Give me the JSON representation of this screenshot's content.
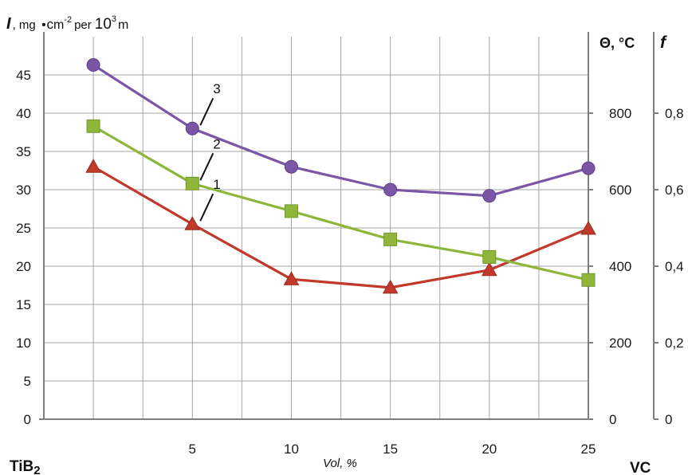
{
  "chart_data": {
    "type": "line",
    "x_axis": {
      "label": "Vol, %",
      "ticks": [
        "5",
        "10",
        "15",
        "20",
        "25"
      ],
      "left_end_label": "TiB",
      "left_end_sub": "2",
      "right_end_label": "VC",
      "range": [
        -2.5,
        25
      ]
    },
    "y_axes": {
      "left": {
        "title_italic": "I",
        "title_rest": ", mg",
        "title_bullet": "•",
        "title_c": "c",
        "title_m": "m",
        "title_exp": "-2",
        "title_per": "per",
        "title_ten": "10",
        "title_ten_exp": "3",
        "title_meters": "m",
        "ticks": [
          "0",
          "5",
          "10",
          "15",
          "20",
          "25",
          "30",
          "35",
          "40",
          "45"
        ],
        "range": [
          0,
          50
        ]
      },
      "middle": {
        "title": "Θ, °C",
        "ticks": [
          "0",
          "200",
          "400",
          "600",
          "800"
        ],
        "range": [
          0,
          1000
        ]
      },
      "right": {
        "title": "f",
        "ticks": [
          "0",
          "0,2",
          "0,4",
          "0,6",
          "0,8"
        ],
        "range": [
          0,
          1
        ]
      }
    },
    "grid": true,
    "series": [
      {
        "label": "1",
        "color": "#c0392b",
        "marker": "triangle",
        "x": [
          0,
          5,
          10,
          15,
          20,
          25
        ],
        "y": [
          33.0,
          25.5,
          18.3,
          17.2,
          19.5,
          24.9
        ]
      },
      {
        "label": "2",
        "color": "#8db63a",
        "marker": "square",
        "x": [
          0,
          5,
          10,
          15,
          20,
          25
        ],
        "y": [
          38.3,
          30.8,
          27.2,
          23.5,
          21.2,
          18.2
        ]
      },
      {
        "label": "3",
        "color": "#7c56a6",
        "marker": "circle",
        "x": [
          0,
          5,
          10,
          15,
          20,
          25
        ],
        "y": [
          46.3,
          38.0,
          33.0,
          30.0,
          29.2,
          32.8
        ]
      }
    ]
  }
}
